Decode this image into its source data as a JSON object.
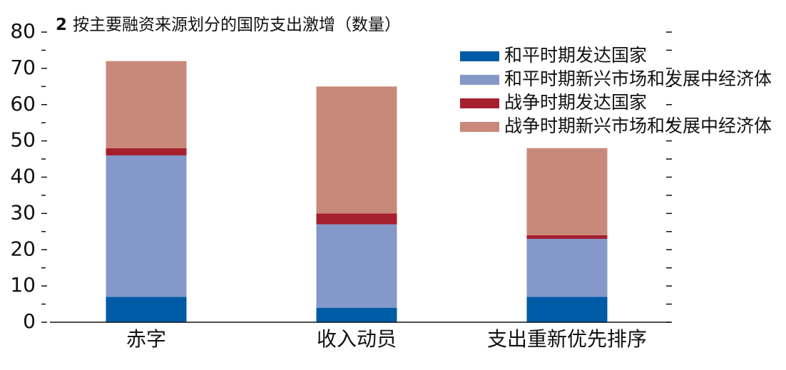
{
  "chart_data": {
    "type": "stacked-bar",
    "figure_number": "2",
    "title": "按主要融资来源划分的国防支出激增（数量）",
    "categories": [
      "赤字",
      "收入动员",
      "支出重新优先排序"
    ],
    "series": [
      {
        "name": "和平时期发达国家",
        "color": "#005ba6",
        "values": [
          7,
          4,
          7
        ]
      },
      {
        "name": "和平时期新兴市场和发展中经济体",
        "color": "#8499c9",
        "values": [
          39,
          23,
          16
        ]
      },
      {
        "name": "战争时期发达国家",
        "color": "#a51f2e",
        "values": [
          2,
          3,
          1
        ]
      },
      {
        "name": "战争时期新兴市场和发展中经济体",
        "color": "#c9897a",
        "values": [
          24,
          35,
          24
        ]
      }
    ],
    "ylim": [
      0,
      80
    ],
    "yticks": [
      0,
      10,
      20,
      30,
      40,
      50,
      60,
      70,
      80
    ],
    "yminorticks": [
      5,
      15,
      25,
      35,
      45,
      55,
      65,
      75
    ],
    "legend": "top-right"
  }
}
